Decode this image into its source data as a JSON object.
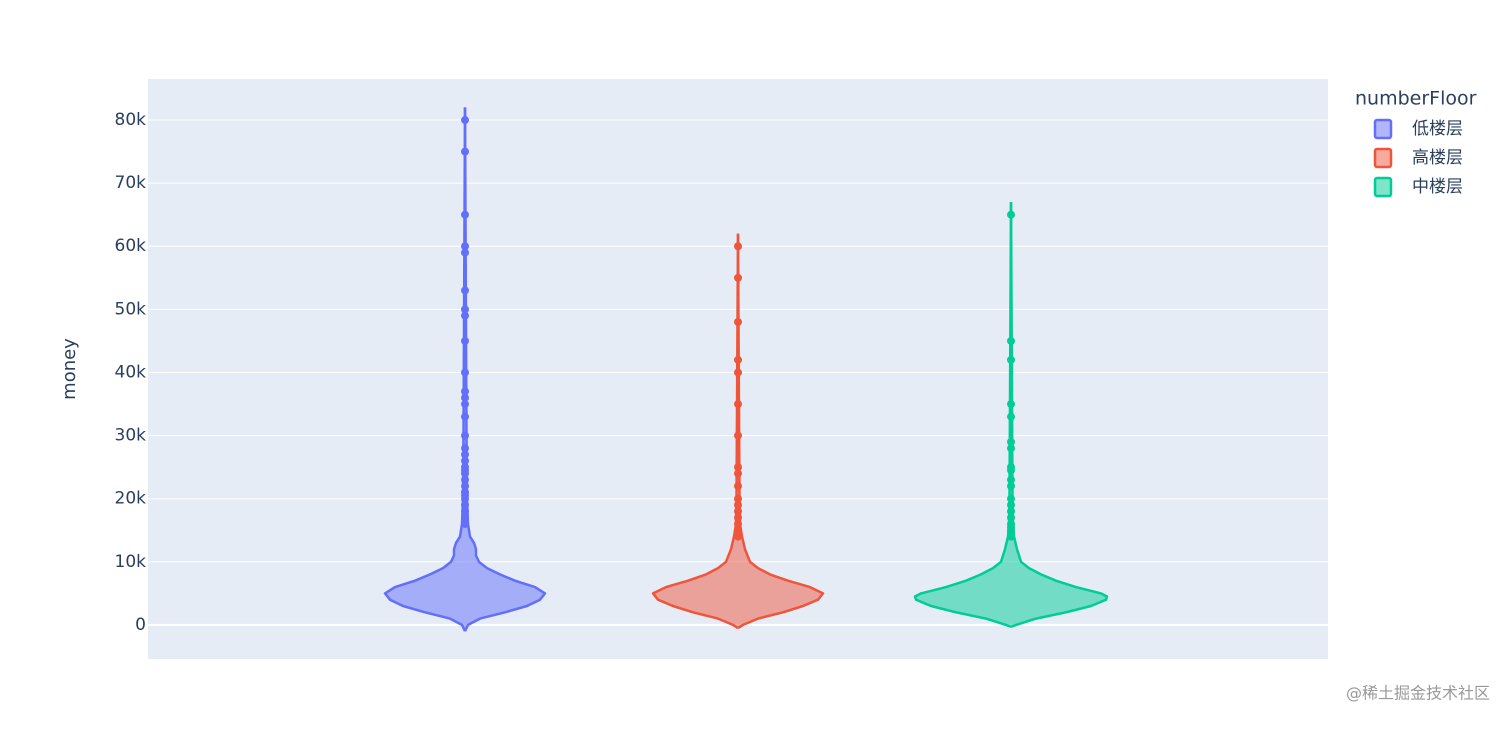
{
  "chart_data": {
    "type": "violin",
    "ylabel": "money",
    "ylim": [
      -5400,
      86500
    ],
    "yticks": [
      0,
      {
        "value": 10000,
        "label": "10k"
      },
      {
        "value": 20000,
        "label": "20k"
      },
      {
        "value": 30000,
        "label": "30k"
      },
      {
        "value": 40000,
        "label": "40k"
      },
      {
        "value": 50000,
        "label": "50k"
      },
      {
        "value": 60000,
        "label": "60k"
      },
      {
        "value": 70000,
        "label": "70k"
      },
      {
        "value": 80000,
        "label": "80k"
      }
    ],
    "grid": true,
    "legend_title": "numberFloor",
    "legend_position": "right",
    "watermark": "@稀土掘金技术社区",
    "series": [
      {
        "name": "低楼层",
        "color": "#636efa",
        "violin": {
          "y": [
            -1000,
            0,
            1000,
            2000,
            3000,
            4000,
            5000,
            6000,
            7000,
            8000,
            9000,
            10000,
            11000,
            12000,
            13000,
            14000,
            16000,
            20000,
            30000,
            82000
          ],
          "density": [
            0,
            3,
            15,
            40,
            62,
            75,
            80,
            70,
            50,
            35,
            22,
            14,
            11,
            11,
            9,
            5,
            3,
            2,
            1.5,
            0
          ]
        },
        "values": [
          80000,
          75000,
          65000,
          60000,
          59000,
          53000,
          50000,
          49000,
          45000,
          40000,
          37000,
          36000,
          35000,
          33000,
          30000,
          28000,
          27000,
          26000,
          25000,
          24500,
          24000,
          23000,
          22000,
          21000,
          20500,
          20000,
          19000,
          18000,
          17000,
          16000
        ]
      },
      {
        "name": "高楼层",
        "color": "#ef553b",
        "violin": {
          "y": [
            -500,
            0,
            1000,
            2000,
            3000,
            4000,
            5000,
            6000,
            7000,
            8000,
            9000,
            10000,
            12000,
            14000,
            16000,
            20000,
            62000
          ],
          "density": [
            0,
            5,
            20,
            45,
            65,
            80,
            85,
            72,
            50,
            32,
            20,
            12,
            7,
            4,
            2,
            1.5,
            0
          ]
        },
        "values": [
          60000,
          55000,
          48000,
          42000,
          40000,
          35000,
          30000,
          25000,
          24000,
          22000,
          20000,
          19000,
          18000,
          17000,
          16000,
          15000,
          14500,
          14000
        ]
      },
      {
        "name": "中楼层",
        "color": "#00cc96",
        "violin": {
          "y": [
            -300,
            0,
            1000,
            2000,
            3000,
            4000,
            4500,
            5000,
            6000,
            7000,
            8000,
            9000,
            10000,
            12000,
            14000,
            16000,
            20000,
            67000
          ],
          "density": [
            0,
            5,
            25,
            55,
            80,
            95,
            96,
            90,
            65,
            45,
            30,
            18,
            10,
            6,
            3,
            2,
            1.5,
            0
          ]
        },
        "values": [
          65000,
          45000,
          42000,
          35000,
          33000,
          29000,
          28000,
          25000,
          24500,
          23000,
          22000,
          20000,
          19000,
          18000,
          17000,
          16000,
          15500,
          15000,
          14500,
          14000
        ]
      }
    ]
  }
}
